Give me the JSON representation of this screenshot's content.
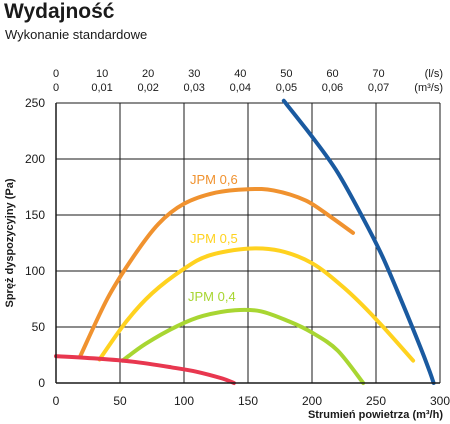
{
  "header": {
    "title": "Wydajność",
    "subtitle": "Wykonanie standardowe"
  },
  "chart_data": {
    "type": "line",
    "xlabel": "Strumień powietrza (m³/h)",
    "ylabel": "Spręż dyspozycyjny (Pa)",
    "xlim": [
      0,
      300
    ],
    "ylim": [
      0,
      250
    ],
    "x_ticks": [
      "0",
      "50",
      "100",
      "150",
      "200",
      "250",
      "300"
    ],
    "y_ticks": [
      "0",
      "50",
      "100",
      "150",
      "200",
      "250"
    ],
    "secondary_x": {
      "unit_ls": "(l/s)",
      "unit_m3s": "(m³/s)",
      "ticks_ls": [
        "0",
        "10",
        "20",
        "30",
        "40",
        "50",
        "60",
        "70"
      ],
      "ticks_m3s": [
        "0",
        "0,01",
        "0,02",
        "0,03",
        "0,04",
        "0,05",
        "0,06",
        "0,07"
      ]
    },
    "grid": true,
    "series": [
      {
        "name": "JPM 0,6",
        "color": "#f0922f",
        "points": [
          [
            19,
            24
          ],
          [
            40,
            75
          ],
          [
            60,
            112
          ],
          [
            80,
            142
          ],
          [
            100,
            160
          ],
          [
            125,
            170
          ],
          [
            150,
            173
          ],
          [
            170,
            172
          ],
          [
            195,
            163
          ],
          [
            215,
            148
          ],
          [
            232,
            134
          ]
        ]
      },
      {
        "name": "JPM 0,5",
        "color": "#ffd21f",
        "points": [
          [
            34,
            21
          ],
          [
            55,
            55
          ],
          [
            75,
            80
          ],
          [
            100,
            102
          ],
          [
            120,
            114
          ],
          [
            150,
            120
          ],
          [
            175,
            118
          ],
          [
            200,
            107
          ],
          [
            225,
            85
          ],
          [
            250,
            57
          ],
          [
            279,
            20
          ]
        ]
      },
      {
        "name": "JPM 0,4",
        "color": "#a8d632",
        "points": [
          [
            52,
            20
          ],
          [
            70,
            35
          ],
          [
            95,
            51
          ],
          [
            115,
            60
          ],
          [
            140,
            65
          ],
          [
            160,
            64
          ],
          [
            182,
            55
          ],
          [
            200,
            45
          ],
          [
            220,
            29
          ],
          [
            240,
            0
          ]
        ]
      },
      {
        "name": "",
        "color": "#e8374f",
        "points": [
          [
            0,
            24
          ],
          [
            30,
            22
          ],
          [
            60,
            19
          ],
          [
            90,
            14
          ],
          [
            110,
            10
          ],
          [
            130,
            4
          ],
          [
            139,
            0
          ]
        ]
      },
      {
        "name": "",
        "color": "#1a5aa0",
        "points": [
          [
            178,
            252
          ],
          [
            200,
            220
          ],
          [
            220,
            188
          ],
          [
            240,
            147
          ],
          [
            255,
            113
          ],
          [
            270,
            73
          ],
          [
            285,
            31
          ],
          [
            292,
            10
          ],
          [
            295,
            0
          ]
        ]
      }
    ]
  }
}
